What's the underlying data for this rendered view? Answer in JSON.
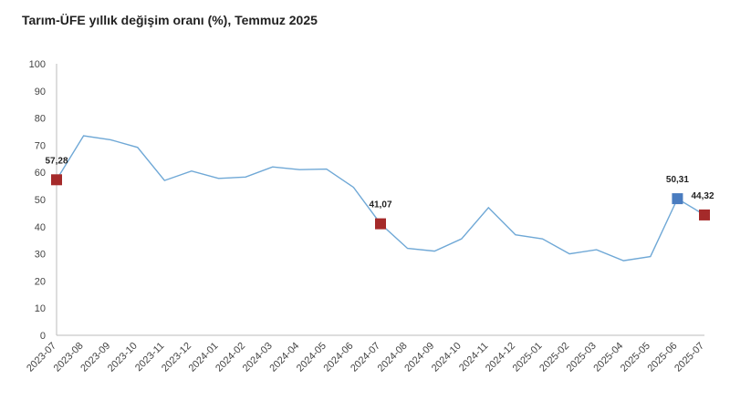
{
  "title": "Tarım-ÜFE yıllık değişim oranı (%), Temmuz 2025",
  "chart_data": {
    "type": "line",
    "title": "Tarım-ÜFE yıllık değişim oranı (%), Temmuz 2025",
    "xlabel": "",
    "ylabel": "",
    "ylim": [
      0,
      100
    ],
    "yticks": [
      0,
      10,
      20,
      30,
      40,
      50,
      60,
      70,
      80,
      90,
      100
    ],
    "grid": false,
    "line_color": "#6fa8d6",
    "x": [
      "2023-07",
      "2023-08",
      "2023-09",
      "2023-10",
      "2023-11",
      "2023-12",
      "2024-01",
      "2024-02",
      "2024-03",
      "2024-04",
      "2024-05",
      "2024-06",
      "2024-07",
      "2024-08",
      "2024-09",
      "2024-10",
      "2024-11",
      "2024-12",
      "2025-01",
      "2025-02",
      "2025-03",
      "2025-04",
      "2025-05",
      "2025-06",
      "2025-07"
    ],
    "series": [
      {
        "values": [
          57.28,
          73.5,
          72.0,
          69.2,
          57.0,
          60.5,
          57.8,
          58.3,
          62.0,
          61.0,
          61.2,
          54.5,
          41.07,
          32.0,
          31.0,
          35.5,
          47.0,
          37.0,
          35.5,
          30.0,
          31.5,
          27.5,
          29.0,
          50.31,
          44.32
        ]
      }
    ],
    "highlights": [
      {
        "index": 0,
        "label": "57,28",
        "color": "#a52a2a"
      },
      {
        "index": 12,
        "label": "41,07",
        "color": "#a52a2a"
      },
      {
        "index": 23,
        "label": "50,31",
        "color": "#4a7cc0"
      },
      {
        "index": 24,
        "label": "44,32",
        "color": "#a52a2a"
      }
    ]
  }
}
